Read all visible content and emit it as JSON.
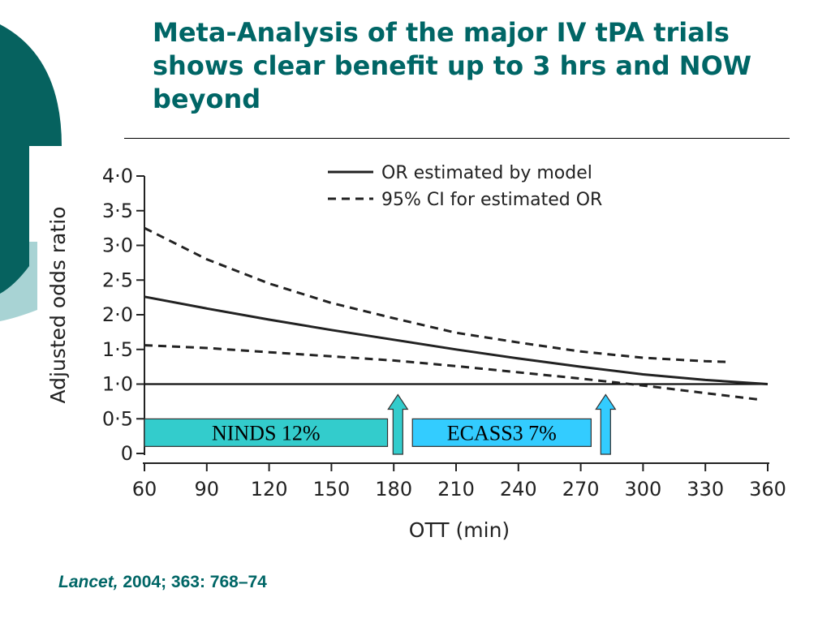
{
  "slide": {
    "title": "Meta-Analysis of the major IV tPA trials shows clear benefit up to 3 hrs and NOW beyond",
    "citation_journal": "Lancet,",
    "citation_rest": " 2004; 363: 768–74",
    "title_color": "#006666",
    "deco_dark": "#06625f",
    "deco_light": "#a8d3d4"
  },
  "chart_data": {
    "type": "line",
    "xlabel": "OTT (min)",
    "ylabel": "Adjusted odds ratio",
    "x_ticks": [
      60,
      90,
      120,
      150,
      180,
      210,
      240,
      270,
      300,
      330,
      360
    ],
    "y_ticks": [
      0,
      0.5,
      1.0,
      1.5,
      2.0,
      2.5,
      3.0,
      3.5,
      4.0
    ],
    "y_tick_labels": [
      "0",
      "0·5",
      "1·0",
      "1·5",
      "2·0",
      "2·5",
      "3·0",
      "3·5",
      "4·0"
    ],
    "xlim": [
      60,
      360
    ],
    "ylim": [
      0,
      4.0
    ],
    "legend_position": "top-right",
    "series": [
      {
        "name": "OR estimated by model",
        "style": "solid",
        "x": [
          60,
          90,
          120,
          150,
          180,
          210,
          240,
          270,
          300,
          330,
          360
        ],
        "y": [
          2.26,
          2.09,
          1.93,
          1.78,
          1.64,
          1.5,
          1.37,
          1.25,
          1.14,
          1.06,
          1.0
        ]
      },
      {
        "name": "95% CI for estimated OR",
        "style": "dashed",
        "bound": "upper",
        "x": [
          60,
          90,
          120,
          150,
          180,
          210,
          240,
          270,
          300,
          330,
          340
        ],
        "y": [
          3.25,
          2.8,
          2.45,
          2.17,
          1.95,
          1.74,
          1.6,
          1.47,
          1.38,
          1.33,
          1.32
        ]
      },
      {
        "name": "95% CI for estimated OR",
        "style": "dashed",
        "bound": "lower",
        "x": [
          60,
          90,
          120,
          150,
          180,
          210,
          240,
          270,
          300,
          330,
          355
        ],
        "y": [
          1.56,
          1.52,
          1.46,
          1.4,
          1.34,
          1.26,
          1.17,
          1.08,
          0.98,
          0.87,
          0.78
        ]
      }
    ],
    "reference_line": {
      "y": 1.0
    },
    "annotations": [
      {
        "label": "NINDS 12%",
        "x_start": 60,
        "x_end": 177,
        "y": 0.3,
        "arrow_x": 182,
        "fill": "#33cccc"
      },
      {
        "label": "ECASS3 7%",
        "x_start": 189,
        "x_end": 275,
        "y": 0.3,
        "arrow_x": 282,
        "fill": "#33ccff"
      }
    ]
  }
}
